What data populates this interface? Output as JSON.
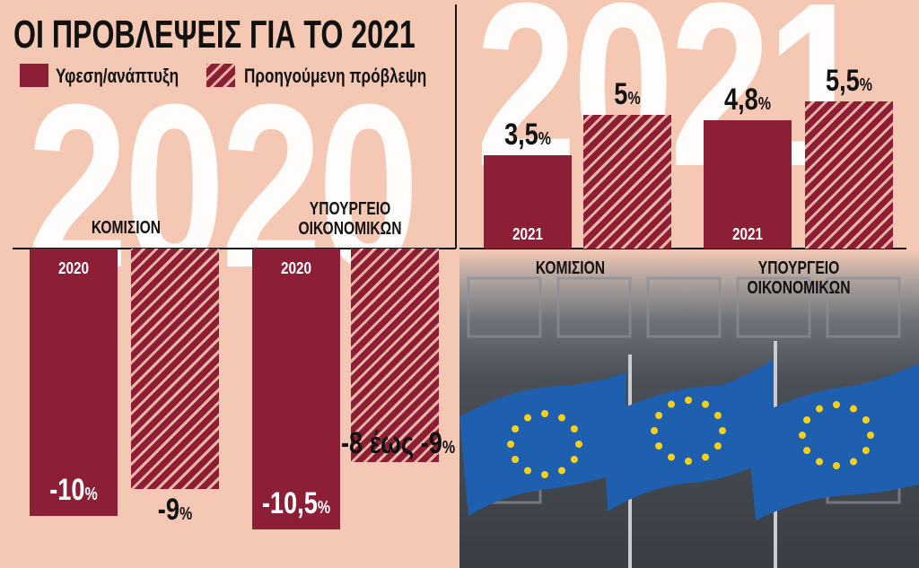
{
  "colors": {
    "background": "#f5c8b4",
    "bar": "#8c1e35",
    "hatch_stripe": "#f0b6a6",
    "flag": "#1f5fb0",
    "star": "#f7d117"
  },
  "chart_data": {
    "type": "bar",
    "title": "ΟΙ ΠΡΟΒΛΕΨΕΙΣ ΓΙΑ ΤΟ 2021",
    "legend": [
      {
        "name": "Υφεση/ανάπτυξη",
        "style": "solid"
      },
      {
        "name": "Προηγούμενη πρόβλεψη",
        "style": "hatched"
      }
    ],
    "unit": "%",
    "panels": [
      {
        "watermark": "2020",
        "categories": [
          "ΚΟΜΙΣΙΟΝ",
          "ΥΠΟΥΡΓΕΙΟ ΟΙΚΟΝΟΜΙΚΩΝ"
        ],
        "series": [
          {
            "name": "Υφεση/ανάπτυξη",
            "values": [
              -10,
              -10.5
            ],
            "labels": [
              "-10",
              "-10,5"
            ],
            "bar_year": "2020"
          },
          {
            "name": "Προηγούμενη πρόβλεψη",
            "values": [
              -9,
              -8
            ],
            "value_ranges": [
              null,
              [
                -8,
                -9
              ]
            ],
            "labels": [
              "-9",
              "-8 έως -9"
            ]
          }
        ]
      },
      {
        "watermark": "2021",
        "categories": [
          "ΚΟΜΙΣΙΟΝ",
          "ΥΠΟΥΡΓΕΙΟ ΟΙΚΟΝΟΜΙΚΩΝ"
        ],
        "series": [
          {
            "name": "Υφεση/ανάπτυξη",
            "values": [
              3.5,
              4.8
            ],
            "labels": [
              "3,5",
              "4,8"
            ],
            "bar_year": "2021"
          },
          {
            "name": "Προηγούμενη πρόβλεψη",
            "values": [
              5,
              5.5
            ],
            "labels": [
              "5",
              "5,5"
            ]
          }
        ]
      }
    ]
  }
}
